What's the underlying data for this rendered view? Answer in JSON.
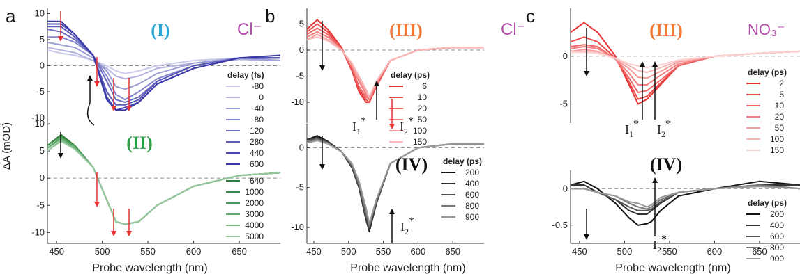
{
  "figure": {
    "panels": [
      {
        "letter": "a",
        "ion": "Cl⁻",
        "ion_color": "#b04ca8"
      },
      {
        "letter": "b",
        "ion": "Cl⁻",
        "ion_color": "#b04ca8"
      },
      {
        "letter": "c",
        "ion": "NO₃⁻",
        "ion_color": "#b04ca8"
      }
    ],
    "ylabel": "ΔA (mOD)",
    "xlabel": "Probe wavelength (nm)"
  },
  "chart_data": [
    {
      "type": "line",
      "panel": "a",
      "region": "top",
      "label": "(I)",
      "label_color": "#2aa7d6",
      "xlim": [
        440,
        695
      ],
      "ylim": [
        -11,
        11
      ],
      "xticks": [
        450,
        500,
        550,
        600,
        650
      ],
      "yticks": [
        10,
        5,
        0,
        -5,
        -10
      ],
      "legend_title": "delay (fs)",
      "grid": false,
      "x": [
        440,
        455,
        470,
        490,
        505,
        515,
        525,
        540,
        560,
        600,
        650,
        695
      ],
      "series": [
        {
          "name": "-80",
          "color": "#c9c9e9",
          "values": [
            3,
            2.4,
            2,
            1,
            0,
            -1,
            -1.5,
            -1,
            0,
            1,
            1.5,
            1
          ]
        },
        {
          "name": "0",
          "color": "#b3b3e0",
          "values": [
            3.5,
            3,
            2.5,
            1,
            -0.5,
            -2,
            -2.5,
            -2,
            -0.5,
            0.5,
            1.2,
            1
          ]
        },
        {
          "name": "40",
          "color": "#9d9dd6",
          "values": [
            4.5,
            4,
            3.5,
            1.5,
            -1,
            -4,
            -4.5,
            -3.5,
            -1.5,
            0.5,
            1.5,
            1
          ]
        },
        {
          "name": "80",
          "color": "#8585cc",
          "values": [
            5.5,
            5.5,
            4.5,
            2,
            -2,
            -5.5,
            -6.5,
            -5,
            -2.5,
            0,
            1.5,
            1.5
          ]
        },
        {
          "name": "120",
          "color": "#6d6dc2",
          "values": [
            7,
            6.5,
            5,
            2,
            -3,
            -6.5,
            -7,
            -6,
            -3,
            0,
            1.5,
            1.5
          ]
        },
        {
          "name": "280",
          "color": "#5a5ab8",
          "values": [
            7.5,
            7.5,
            5.5,
            2,
            -5,
            -7.5,
            -7.5,
            -6.5,
            -3,
            0,
            1.5,
            1.5
          ]
        },
        {
          "name": "440",
          "color": "#4a4aae",
          "values": [
            8,
            8,
            6,
            2,
            -6,
            -8.5,
            -8,
            -7,
            -3.5,
            -0.5,
            1.5,
            1.5
          ]
        },
        {
          "name": "600",
          "color": "#3838a6",
          "values": [
            8.5,
            8.5,
            6,
            2,
            -6.5,
            -8.5,
            -8.5,
            -7,
            -3.5,
            -0.5,
            1.5,
            2
          ]
        }
      ]
    },
    {
      "type": "line",
      "panel": "a",
      "region": "bottom",
      "label": "(II)",
      "label_color": "#2e9a4a",
      "xlim": [
        440,
        695
      ],
      "ylim": [
        -12,
        10
      ],
      "xticks": [
        450,
        500,
        550,
        600,
        650
      ],
      "yticks": [
        10,
        5,
        0,
        -5,
        -10
      ],
      "legend_title": "",
      "grid": false,
      "x": [
        440,
        455,
        470,
        490,
        505,
        515,
        525,
        540,
        560,
        600,
        650,
        695
      ],
      "series": [
        {
          "name": "640",
          "color": "#2f7d3b",
          "values": [
            6,
            8,
            6,
            2,
            -4,
            -8,
            -8.5,
            -8,
            -5,
            -1.5,
            0.5,
            1
          ]
        },
        {
          "name": "1000",
          "color": "#3b8c47",
          "values": [
            6,
            7.8,
            6,
            2,
            -4,
            -8,
            -8.5,
            -8,
            -5,
            -1.5,
            0.5,
            1
          ]
        },
        {
          "name": "2000",
          "color": "#4c9a58",
          "values": [
            5.5,
            7.5,
            5.8,
            2,
            -4,
            -8,
            -8.5,
            -8,
            -5,
            -1.5,
            0.5,
            1
          ]
        },
        {
          "name": "3000",
          "color": "#64a96e",
          "values": [
            5.5,
            7.3,
            5.7,
            2,
            -4,
            -8,
            -8.5,
            -8,
            -5,
            -1.5,
            0.5,
            1
          ]
        },
        {
          "name": "4000",
          "color": "#7bb785",
          "values": [
            5,
            7,
            5.5,
            2,
            -4,
            -8,
            -8.5,
            -8,
            -5,
            -1.5,
            0.5,
            1
          ]
        },
        {
          "name": "5000",
          "color": "#96c69d",
          "values": [
            5,
            6.8,
            5.3,
            2,
            -4,
            -8,
            -8.5,
            -8,
            -5,
            -1.5,
            0.5,
            1
          ]
        }
      ]
    },
    {
      "type": "line",
      "panel": "b",
      "region": "top",
      "label": "(III)",
      "label_color": "#f07a3a",
      "xlim": [
        440,
        695
      ],
      "ylim": [
        -14,
        8
      ],
      "xticks": [
        450,
        500,
        550,
        600,
        650
      ],
      "yticks": [
        5,
        0,
        -5,
        -10
      ],
      "legend_title": "delay (ps)",
      "grid": false,
      "x": [
        440,
        455,
        470,
        490,
        505,
        515,
        525,
        530,
        540,
        560,
        600,
        650,
        695
      ],
      "series": [
        {
          "name": "6",
          "color": "#e63232",
          "values": [
            4,
            5.8,
            4,
            0.5,
            -4,
            -8,
            -10,
            -10,
            -7,
            -2,
            0,
            0.5,
            0.5
          ]
        },
        {
          "name": "10",
          "color": "#ea4a4a",
          "values": [
            3.5,
            5,
            3.5,
            0.3,
            -4,
            -7.5,
            -9.5,
            -10,
            -7,
            -2,
            0,
            0.5,
            0.5
          ]
        },
        {
          "name": "20",
          "color": "#ee6565",
          "values": [
            3,
            4.2,
            3,
            0.2,
            -3.5,
            -7,
            -9,
            -9.5,
            -6.5,
            -2,
            0,
            0.5,
            0.5
          ]
        },
        {
          "name": "50",
          "color": "#f28080",
          "values": [
            2.5,
            3.5,
            2.5,
            0.2,
            -3,
            -6,
            -8.5,
            -9.5,
            -6.5,
            -2,
            0,
            0.5,
            0.5
          ]
        },
        {
          "name": "100",
          "color": "#f59c9c",
          "values": [
            2,
            3,
            2,
            0,
            -3,
            -5.5,
            -8,
            -9,
            -6,
            -2,
            0,
            0.5,
            0.5
          ]
        },
        {
          "name": "150",
          "color": "#f8b8b8",
          "values": [
            2,
            2.5,
            1.8,
            0,
            -2.5,
            -5,
            -7.5,
            -9,
            -6,
            -2,
            0,
            0.5,
            0.5
          ]
        }
      ]
    },
    {
      "type": "line",
      "panel": "b",
      "region": "bottom",
      "label": "(IV)",
      "label_color": "#111111",
      "xlim": [
        440,
        695
      ],
      "ylim": [
        -12,
        3
      ],
      "xticks": [
        450,
        500,
        550,
        600,
        650
      ],
      "yticks": [
        0,
        -5,
        -10
      ],
      "legend_title": "delay (ps)",
      "grid": false,
      "x": [
        440,
        455,
        470,
        490,
        505,
        515,
        525,
        530,
        540,
        560,
        600,
        650,
        695
      ],
      "series": [
        {
          "name": "200",
          "color": "#111111",
          "values": [
            1,
            1.5,
            0.8,
            -0.5,
            -2.5,
            -5,
            -9,
            -10.5,
            -7,
            -2,
            0,
            0.5,
            0.5
          ]
        },
        {
          "name": "400",
          "color": "#333333",
          "values": [
            1,
            1.3,
            0.8,
            -0.5,
            -2.5,
            -5,
            -9,
            -10.3,
            -7,
            -2,
            0,
            0.5,
            0.5
          ]
        },
        {
          "name": "600",
          "color": "#555555",
          "values": [
            0.8,
            1.2,
            0.6,
            -0.5,
            -2.3,
            -4.8,
            -8.5,
            -10,
            -6.8,
            -2,
            0,
            0.5,
            0.5
          ]
        },
        {
          "name": "800",
          "color": "#777777",
          "values": [
            0.8,
            1,
            0.6,
            -0.5,
            -2.2,
            -4.5,
            -8,
            -9.8,
            -6.5,
            -2,
            0,
            0.5,
            0.5
          ]
        },
        {
          "name": "900",
          "color": "#999999",
          "values": [
            0.6,
            0.9,
            0.5,
            -0.5,
            -2,
            -4.2,
            -7.5,
            -9.5,
            -6.5,
            -2,
            0,
            0.5,
            0.5
          ]
        }
      ]
    },
    {
      "type": "line",
      "panel": "c",
      "region": "top",
      "label": "(III)",
      "label_color": "#f07a3a",
      "xlim": [
        440,
        695
      ],
      "ylim": [
        -7,
        5
      ],
      "xticks": [
        450,
        500,
        550,
        600,
        650
      ],
      "yticks": [
        0,
        -5
      ],
      "legend_title": "delay (ps)",
      "grid": false,
      "x": [
        440,
        455,
        470,
        490,
        505,
        515,
        525,
        540,
        560,
        600,
        650,
        695
      ],
      "series": [
        {
          "name": "2",
          "color": "#e63232",
          "values": [
            2.5,
            3.5,
            2.5,
            0,
            -3,
            -5,
            -4.5,
            -3,
            -1,
            0,
            0.3,
            0.5
          ]
        },
        {
          "name": "5",
          "color": "#ea4a4a",
          "values": [
            1.5,
            2,
            1.5,
            -0.2,
            -2.7,
            -4.5,
            -4.2,
            -2.8,
            -1,
            0,
            0.3,
            0.5
          ]
        },
        {
          "name": "10",
          "color": "#ee6565",
          "values": [
            1,
            1.2,
            1,
            -0.3,
            -2.3,
            -3.8,
            -3.6,
            -2.5,
            -1,
            0,
            0.3,
            0.5
          ]
        },
        {
          "name": "20",
          "color": "#f28080",
          "values": [
            0.8,
            1,
            0.8,
            -0.3,
            -1.8,
            -3,
            -3,
            -2,
            -0.8,
            0,
            0.3,
            0.5
          ]
        },
        {
          "name": "50",
          "color": "#f59c9c",
          "values": [
            0.5,
            0.7,
            0.5,
            -0.3,
            -1.3,
            -2.2,
            -2.3,
            -1.6,
            -0.6,
            0,
            0.3,
            0.5
          ]
        },
        {
          "name": "100",
          "color": "#f8b8b8",
          "values": [
            0.5,
            0.5,
            0.4,
            -0.2,
            -1,
            -1.5,
            -1.7,
            -1.2,
            -0.5,
            0,
            0.3,
            0.5
          ]
        },
        {
          "name": "150",
          "color": "#fbd2d2",
          "values": [
            0.4,
            0.4,
            0.3,
            -0.2,
            -0.8,
            -1,
            -1.2,
            -0.9,
            -0.4,
            0,
            0.3,
            0.5
          ]
        }
      ]
    },
    {
      "type": "line",
      "panel": "c",
      "region": "bottom",
      "label": "(IV)",
      "label_color": "#111111",
      "xlim": [
        440,
        695
      ],
      "ylim": [
        -0.75,
        0.25
      ],
      "xticks": [
        450,
        500,
        550,
        600,
        650
      ],
      "yticks": [
        0,
        -0.5
      ],
      "legend_title": "delay (ps)",
      "grid": false,
      "x": [
        440,
        455,
        470,
        490,
        505,
        515,
        525,
        530,
        540,
        560,
        600,
        650,
        695
      ],
      "series": [
        {
          "name": "200",
          "color": "#111111",
          "values": [
            0.05,
            0.1,
            0,
            -0.2,
            -0.4,
            -0.5,
            -0.48,
            -0.45,
            -0.3,
            -0.1,
            0,
            0.1,
            0.05
          ]
        },
        {
          "name": "400",
          "color": "#333333",
          "values": [
            0.05,
            0.05,
            -0.05,
            -0.15,
            -0.3,
            -0.35,
            -0.35,
            -0.3,
            -0.2,
            -0.05,
            0,
            0.05,
            0.05
          ]
        },
        {
          "name": "600",
          "color": "#555555",
          "values": [
            0,
            0,
            -0.05,
            -0.15,
            -0.25,
            -0.3,
            -0.3,
            -0.28,
            -0.18,
            -0.05,
            0,
            0.05,
            0
          ]
        },
        {
          "name": "800",
          "color": "#777777",
          "values": [
            0,
            0,
            -0.05,
            -0.1,
            -0.2,
            -0.25,
            -0.28,
            -0.25,
            -0.15,
            -0.05,
            0,
            0.05,
            0
          ]
        },
        {
          "name": "900",
          "color": "#999999",
          "values": [
            0,
            0,
            -0.05,
            -0.1,
            -0.18,
            -0.2,
            -0.25,
            -0.22,
            -0.12,
            -0.05,
            0,
            0.03,
            0
          ]
        }
      ]
    }
  ],
  "annotations": {
    "I1": "I",
    "I2": "I",
    "sub1": "1",
    "sub2": "2",
    "star": "*"
  }
}
